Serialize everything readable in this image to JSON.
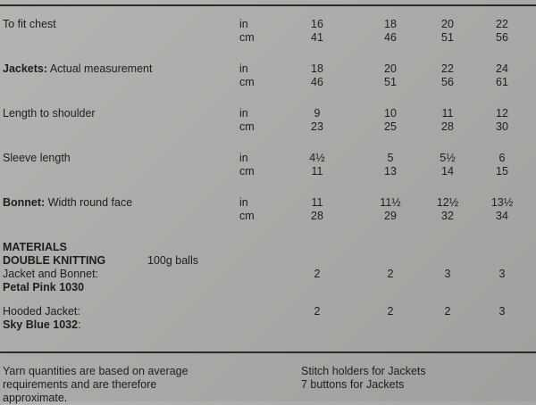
{
  "rows": [
    {
      "bold": "",
      "label": "To fit chest",
      "in": [
        "16",
        "18",
        "20",
        "22"
      ],
      "cm": [
        "41",
        "46",
        "51",
        "56"
      ]
    },
    {
      "bold": "Jackets:",
      "label": " Actual measurement",
      "in": [
        "18",
        "20",
        "22",
        "24"
      ],
      "cm": [
        "46",
        "51",
        "56",
        "61"
      ]
    },
    {
      "bold": "",
      "label": "Length to shoulder",
      "in": [
        "9",
        "10",
        "11",
        "12"
      ],
      "cm": [
        "23",
        "25",
        "28",
        "30"
      ]
    },
    {
      "bold": "",
      "label": "Sleeve length",
      "in": [
        "4½",
        "5",
        "5½",
        "6"
      ],
      "cm": [
        "11",
        "13",
        "14",
        "15"
      ]
    },
    {
      "bold": "Bonnet:",
      "label": " Width round face",
      "in": [
        "11",
        "11½",
        "12½",
        "13½"
      ],
      "cm": [
        "28",
        "29",
        "32",
        "34"
      ]
    }
  ],
  "units": {
    "in": "in",
    "cm": "cm"
  },
  "materials": {
    "heading": "MATERIALS",
    "yarn": "DOUBLE KNITTING",
    "balls": "100g balls",
    "items": [
      {
        "label": "Jacket and Bonnet:",
        "colour": "Petal Pink 1030",
        "values": [
          "2",
          "2",
          "3",
          "3"
        ]
      },
      {
        "label": "Hooded Jacket:",
        "colour": "Sky Blue 1032",
        "colour_suffix": ":",
        "values": [
          "2",
          "2",
          "2",
          "3"
        ]
      }
    ]
  },
  "footer": {
    "left": [
      "Yarn quantities are based on average",
      "requirements and are therefore",
      "approximate."
    ],
    "right": [
      "Stitch holders for Jackets",
      "7 buttons for Jackets"
    ]
  }
}
